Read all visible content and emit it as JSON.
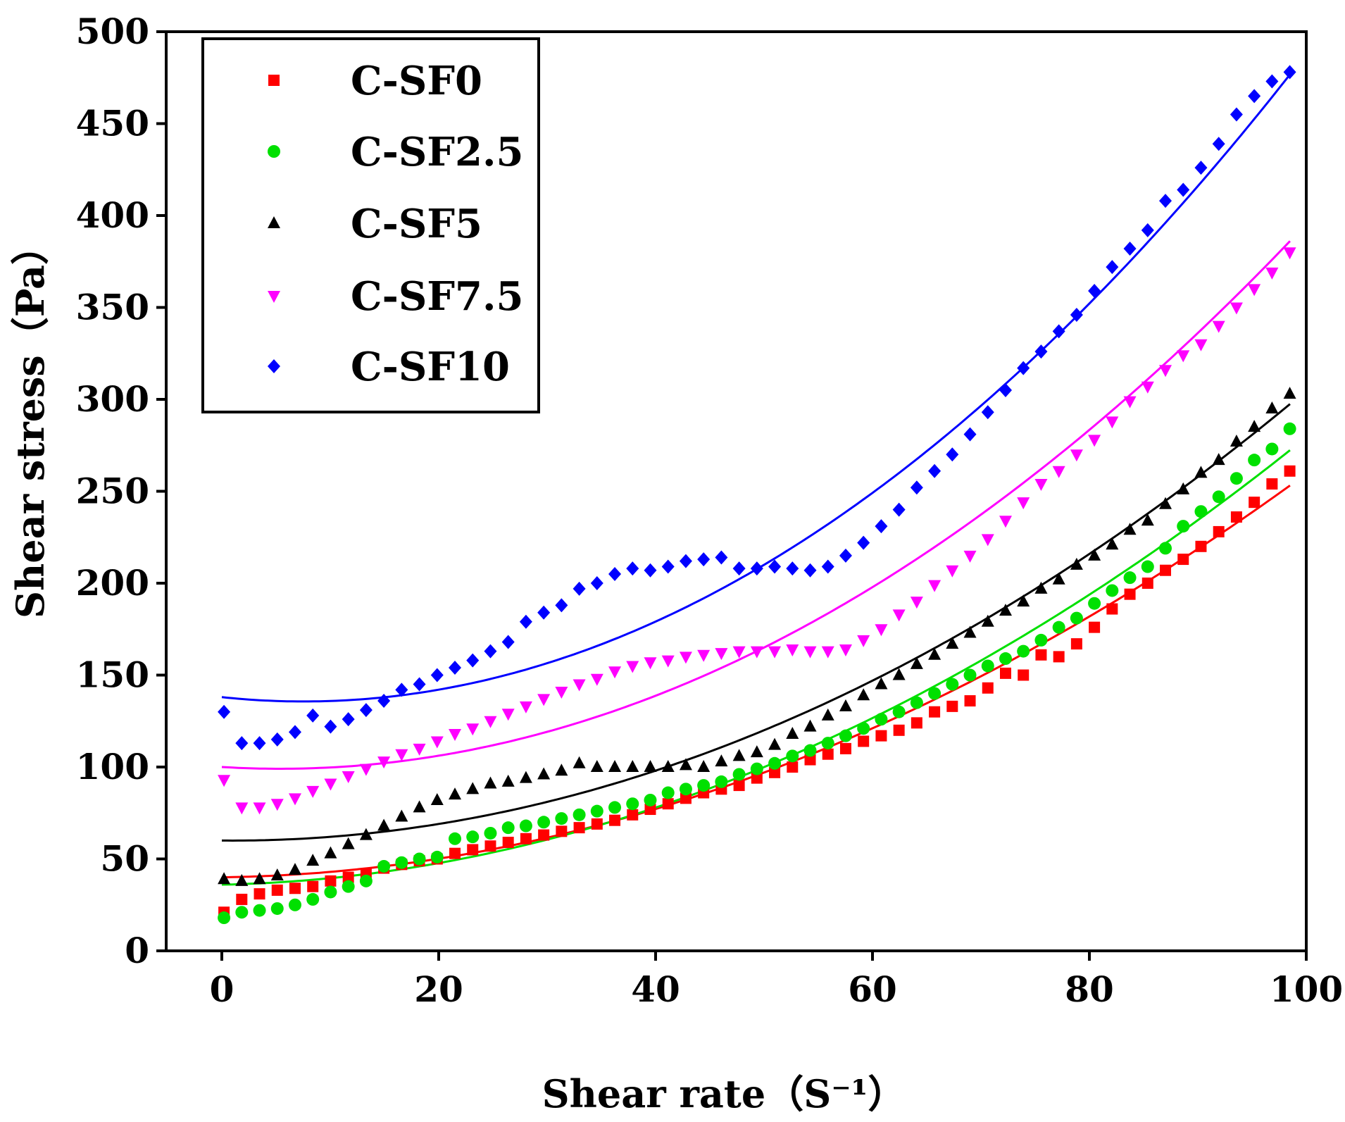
{
  "chart_data": {
    "type": "scatter",
    "title": "",
    "xlabel": "Shear rate（S⁻¹）",
    "ylabel": "Shear stress（Pa）",
    "xlim": [
      -5,
      100
    ],
    "ylim": [
      0,
      500
    ],
    "xticks": [
      0,
      20,
      40,
      60,
      80,
      100
    ],
    "yticks": [
      0,
      50,
      100,
      150,
      200,
      250,
      300,
      350,
      400,
      450,
      500
    ],
    "grid": false,
    "legend_position": "top-left",
    "x_start": 0.2,
    "x_step": 1.638,
    "series": [
      {
        "name": "C-SF0",
        "color": "#ff0000",
        "marker": "square",
        "values": [
          21,
          28,
          31,
          33,
          34,
          35,
          38,
          40,
          42,
          45,
          47,
          49,
          50,
          53,
          55,
          57,
          59,
          61,
          63,
          65,
          67,
          69,
          71,
          74,
          77,
          80,
          83,
          86,
          88,
          90,
          94,
          97,
          100,
          104,
          107,
          110,
          114,
          117,
          120,
          124,
          130,
          133,
          136,
          143,
          151,
          150,
          161,
          160,
          167,
          176,
          186,
          194,
          200,
          207,
          213,
          220,
          228,
          236,
          244,
          254,
          261
        ],
        "fit": [
          40,
          0.0845,
          0.02111
        ]
      },
      {
        "name": "C-SF2.5",
        "color": "#00e000",
        "marker": "circle",
        "values": [
          18,
          21,
          22,
          23,
          25,
          28,
          32,
          35,
          38,
          46,
          48,
          50,
          51,
          61,
          62,
          64,
          67,
          68,
          70,
          72,
          74,
          76,
          78,
          80,
          82,
          86,
          88,
          90,
          92,
          96,
          99,
          102,
          106,
          109,
          113,
          117,
          121,
          126,
          130,
          135,
          140,
          145,
          150,
          155,
          159,
          163,
          169,
          176,
          181,
          189,
          196,
          203,
          209,
          219,
          231,
          239,
          247,
          257,
          267,
          273,
          284
        ],
        "fit": [
          36,
          0.125,
          0.02309
        ]
      },
      {
        "name": "C-SF5",
        "color": "#000000",
        "marker": "triangle-up",
        "values": [
          39,
          38,
          39,
          41,
          44,
          49,
          53,
          58,
          63,
          68,
          73,
          78,
          82,
          85,
          88,
          91,
          92,
          94,
          96,
          98,
          102,
          100,
          100,
          100,
          100,
          100,
          101,
          100,
          103,
          106,
          108,
          112,
          118,
          122,
          128,
          133,
          139,
          145,
          150,
          156,
          161,
          167,
          173,
          179,
          185,
          190,
          197,
          202,
          210,
          215,
          221,
          229,
          234,
          243,
          251,
          260,
          267,
          277,
          285,
          295,
          303
        ],
        "fit": [
          60,
          -0.048,
          0.02496
        ]
      },
      {
        "name": "C-SF7.5",
        "color": "#ff00ff",
        "marker": "triangle-down",
        "values": [
          93,
          78,
          78,
          80,
          83,
          87,
          91,
          95,
          99,
          103,
          107,
          110,
          114,
          118,
          121,
          125,
          129,
          133,
          137,
          141,
          145,
          148,
          152,
          155,
          157,
          158,
          160,
          161,
          162,
          163,
          163,
          163,
          164,
          163,
          163,
          164,
          169,
          175,
          183,
          190,
          199,
          207,
          215,
          224,
          234,
          244,
          254,
          261,
          270,
          278,
          288,
          299,
          307,
          316,
          324,
          330,
          340,
          350,
          360,
          369,
          380
        ],
        "fit": [
          100,
          -0.354,
          0.03308
        ]
      },
      {
        "name": "C-SF10",
        "color": "#0000ff",
        "marker": "diamond",
        "values": [
          130,
          113,
          113,
          115,
          119,
          128,
          122,
          126,
          131,
          136,
          142,
          145,
          150,
          154,
          158,
          163,
          168,
          179,
          184,
          188,
          197,
          200,
          205,
          208,
          207,
          209,
          212,
          213,
          214,
          208,
          208,
          209,
          208,
          207,
          209,
          215,
          222,
          231,
          240,
          252,
          261,
          270,
          281,
          293,
          305,
          317,
          326,
          337,
          346,
          359,
          372,
          382,
          392,
          408,
          414,
          426,
          439,
          455,
          465,
          473,
          478
        ],
        "fit": [
          138,
          -0.621,
          0.04122
        ]
      }
    ]
  }
}
